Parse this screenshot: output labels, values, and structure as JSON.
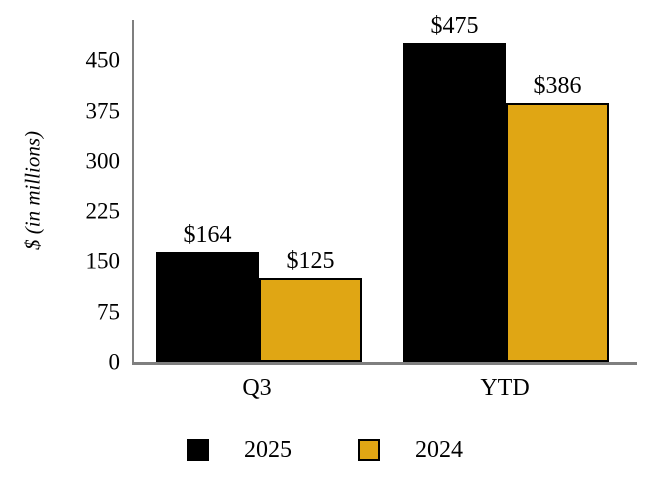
{
  "chart_data": {
    "type": "bar",
    "title": "",
    "categories": [
      "Q3",
      "YTD"
    ],
    "series": [
      {
        "name": "2025",
        "color": "#000000",
        "border": "#000000",
        "values": [
          164,
          475
        ],
        "display_values": [
          "$164",
          "$475"
        ]
      },
      {
        "name": "2024",
        "color": "#E0A614",
        "border": "#000000",
        "values": [
          125,
          386
        ],
        "display_values": [
          "$125",
          "$386"
        ]
      }
    ],
    "xlabel": "",
    "ylabel": "$ (in millions)",
    "yticks": [
      0,
      75,
      150,
      225,
      300,
      375,
      450
    ],
    "ylim": [
      0,
      510
    ],
    "axis_max": 510,
    "axis_color": "#7f7f7f",
    "grid": false,
    "legend_position": "bottom"
  }
}
